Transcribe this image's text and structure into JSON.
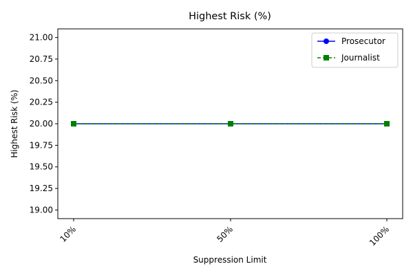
{
  "chart_data": {
    "type": "line",
    "title": "Highest Risk (%)",
    "xlabel": "Suppression Limit",
    "ylabel": "Highest Risk (%)",
    "categories": [
      "10%",
      "50%",
      "100%"
    ],
    "ylim": [
      18.9,
      21.1
    ],
    "yticks": [
      19.0,
      19.25,
      19.5,
      19.75,
      20.0,
      20.25,
      20.5,
      20.75,
      21.0
    ],
    "ytick_labels": [
      "19.00",
      "19.25",
      "19.50",
      "19.75",
      "20.00",
      "20.25",
      "20.50",
      "20.75",
      "21.00"
    ],
    "grid": false,
    "legend_position": "top-right",
    "series": [
      {
        "name": "Prosecutor",
        "values": [
          20,
          20,
          20
        ],
        "color": "#0000ff",
        "marker": "circle",
        "linestyle": "solid"
      },
      {
        "name": "Journalist",
        "values": [
          20,
          20,
          20
        ],
        "color": "#008000",
        "marker": "square",
        "linestyle": "dashed"
      }
    ]
  }
}
